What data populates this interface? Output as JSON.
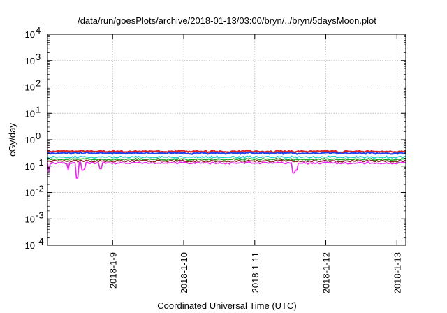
{
  "chart_data": {
    "type": "line",
    "title": "/data/run/goesPlots/archive/2018-01-13/03:00/bryn/../bryn/5daysMoon.plot",
    "xlabel": "Coordinated Universal Time (UTC)",
    "ylabel": "cGy/day",
    "yscale": "log",
    "ylim": [
      0.0001,
      10000
    ],
    "xlim": [
      "2018-01-08T02:00",
      "2018-01-13T03:00"
    ],
    "grid": true,
    "legend": "none",
    "y_ticks": [
      {
        "base": "10",
        "exp": "-4",
        "value": 0.0001
      },
      {
        "base": "10",
        "exp": "-3",
        "value": 0.001
      },
      {
        "base": "10",
        "exp": "-2",
        "value": 0.01
      },
      {
        "base": "10",
        "exp": "-1",
        "value": 0.1
      },
      {
        "base": "10",
        "exp": "0",
        "value": 1
      },
      {
        "base": "10",
        "exp": "1",
        "value": 10
      },
      {
        "base": "10",
        "exp": "2",
        "value": 100
      },
      {
        "base": "10",
        "exp": "3",
        "value": 1000
      },
      {
        "base": "10",
        "exp": "4",
        "value": 10000
      }
    ],
    "x_ticks": [
      {
        "label": "2018-1-9",
        "date": "2018-01-09T00:00"
      },
      {
        "label": "2018-1-10",
        "date": "2018-01-10T00:00"
      },
      {
        "label": "2018-1-11",
        "date": "2018-01-11T00:00"
      },
      {
        "label": "2018-1-12",
        "date": "2018-01-12T00:00"
      },
      {
        "label": "2018-1-13",
        "date": "2018-01-13T00:00"
      }
    ],
    "series": [
      {
        "color": "#dd2222",
        "level": 0.36
      },
      {
        "color": "#2244ee",
        "level": 0.31
      },
      {
        "color": "#22cccc",
        "level": 0.22
      },
      {
        "color": "#22aa22",
        "level": 0.18
      },
      {
        "color": "#882222",
        "level": 0.155
      },
      {
        "color": "#ee22ee",
        "level": 0.13,
        "dips": [
          {
            "date": "2018-01-08T02:30",
            "value": 0.06
          },
          {
            "date": "2018-01-08T09:00",
            "value": 0.07
          },
          {
            "date": "2018-01-08T14:30",
            "value": 0.08
          },
          {
            "date": "2018-01-08T20:00",
            "value": 0.08
          },
          {
            "date": "2018-01-08T12:00",
            "value": 0.035
          },
          {
            "date": "2018-01-08T14:00",
            "value": 0.07
          },
          {
            "date": "2018-01-11T13:00",
            "value": 0.055
          },
          {
            "date": "2018-01-11T14:00",
            "value": 0.07
          }
        ]
      }
    ]
  }
}
